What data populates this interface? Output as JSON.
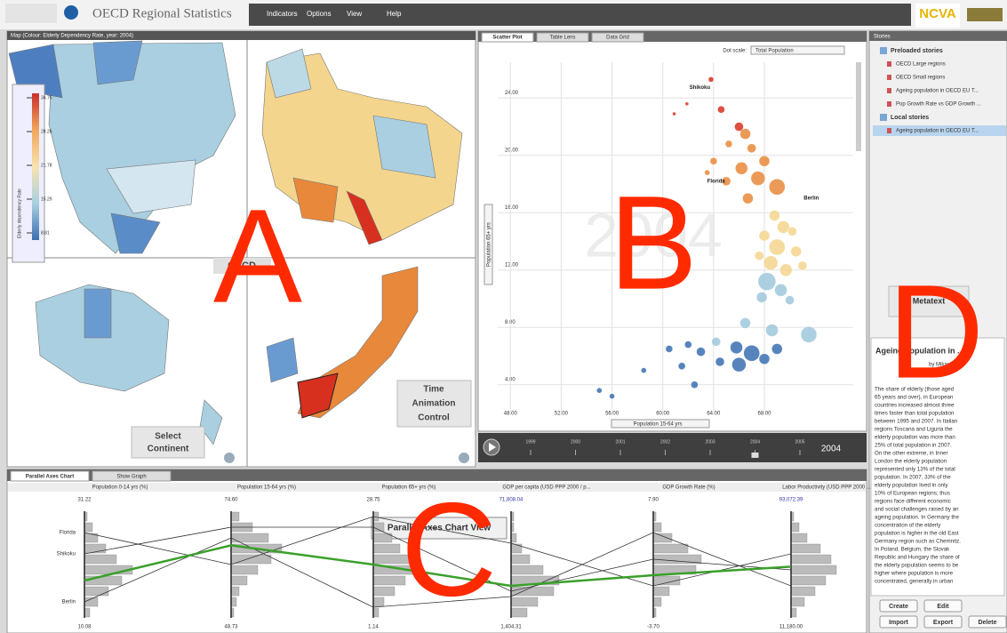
{
  "header": {
    "title": "OECD Regional Statistics",
    "menu": [
      "Indicators",
      "Options",
      "View",
      "Help"
    ],
    "logo": "NCVA"
  },
  "map_panel": {
    "title": "Map (Colour: Elderly Dependency Rate, year: 2004)",
    "overlay": "OECD",
    "letter": "A",
    "callout": [
      "Select",
      "Continent"
    ],
    "legend": {
      "title": "Elderly dependency Rate",
      "ticks": [
        34.75,
        28.26,
        21.78,
        15.29,
        8.81
      ],
      "colors": [
        "#c9302c",
        "#f2a65a",
        "#f7e3b0",
        "#a9cfe0",
        "#3b6fb0"
      ]
    }
  },
  "scatter_panel": {
    "tabs": [
      "Scatter Plot",
      "Table Lens",
      "Data Grid"
    ],
    "dot_scale_label": "Dot scale:",
    "dot_scale": "Total Population",
    "letter": "B",
    "watermark": 2004,
    "chart": {
      "type": "scatter",
      "x_label": "Population 15-64 yrs",
      "y_label": "Population 65+ yrs",
      "xlim": [
        47,
        75
      ],
      "ylim": [
        2,
        26.5
      ],
      "xticks": [
        {
          "value": 48,
          "label": "48.00"
        },
        {
          "value": 52,
          "label": "52.00"
        },
        {
          "value": 56,
          "label": "56.00"
        },
        {
          "value": 60,
          "label": "60.00"
        },
        {
          "value": 64,
          "label": "64.00"
        },
        {
          "value": 68,
          "label": "68.00"
        }
      ],
      "yticks": [
        {
          "value": 4,
          "label": "4.00"
        },
        {
          "value": 8,
          "label": "8.00"
        },
        {
          "value": 12,
          "label": "12.00"
        },
        {
          "value": 16,
          "label": "16.00"
        },
        {
          "value": 20,
          "label": "20.00"
        },
        {
          "value": 24,
          "label": "24.00"
        }
      ],
      "grid": true,
      "colormap": [
        "#3a6fb0",
        "#9ec8dc",
        "#f4d58d",
        "#e8883a",
        "#d7301f"
      ],
      "x": [
        63.8,
        64.6,
        66.0,
        66.5,
        65.2,
        67.0,
        64.0,
        66.2,
        68.0,
        63.5,
        65.0,
        67.5,
        69.0,
        66.7,
        61.9,
        60.9,
        68.8,
        69.5,
        70.2,
        68.0,
        69.0,
        70.5,
        67.6,
        68.5,
        69.7,
        71.0,
        68.2,
        69.3,
        67.8,
        70.0,
        66.5,
        68.6,
        71.5,
        64.2,
        65.8,
        67.0,
        69.0,
        62.0,
        63.0,
        60.5,
        66.0,
        68.0,
        58.5,
        61.5,
        64.5,
        55.0,
        56.0,
        62.5
      ],
      "y": [
        25.3,
        23.2,
        22.0,
        21.5,
        20.8,
        20.5,
        19.6,
        19.1,
        19.6,
        18.8,
        18.2,
        18.4,
        17.8,
        17.0,
        23.6,
        22.9,
        15.8,
        15.0,
        14.7,
        14.4,
        13.6,
        13.3,
        13.0,
        12.5,
        12.0,
        12.3,
        11.2,
        10.6,
        10.1,
        9.9,
        8.3,
        7.8,
        7.5,
        7.0,
        6.6,
        6.2,
        6.5,
        6.8,
        6.3,
        6.5,
        5.4,
        5.8,
        5.0,
        5.3,
        5.6,
        3.6,
        3.2,
        4.0
      ],
      "sizes": [
        3,
        4,
        5,
        6,
        4,
        5,
        4,
        7,
        6,
        3,
        5,
        8,
        9,
        6,
        2,
        2,
        6,
        7,
        5,
        6,
        9,
        6,
        5,
        8,
        7,
        5,
        10,
        7,
        6,
        5,
        6,
        7,
        9,
        5,
        7,
        9,
        6,
        4,
        5,
        4,
        8,
        6,
        3,
        4,
        5,
        3,
        3,
        4
      ],
      "annotations": [
        {
          "text": "Shikoku",
          "x": 62.1,
          "y": 24.75
        },
        {
          "text": "Florida",
          "x": 63.5,
          "y": 18.2
        },
        {
          "text": "Berlin",
          "x": 71.1,
          "y": 17.0
        }
      ]
    }
  },
  "timeline": {
    "callout": [
      "Time",
      "Animation",
      "Control"
    ],
    "ticks": [
      1999,
      2000,
      2001,
      2002,
      2003,
      2004,
      2005
    ],
    "year": 2004
  },
  "parallel_panel": {
    "tabs": [
      "Parallel Axes Chart",
      "Show Graph"
    ],
    "letter": "C",
    "tooltip": "Parallel Axes Chart View",
    "axes": [
      {
        "name": "Population 0-14 yrs (%)",
        "max": {
          "value": 31.22,
          "label": "31.22"
        },
        "min": {
          "value": 10.08,
          "label": "10.08"
        },
        "hist": [
          2,
          5,
          9,
          14,
          18,
          12,
          8,
          5,
          3,
          1
        ]
      },
      {
        "name": "Population 15-64 yrs (%)",
        "max": {
          "value": 74.6,
          "label": "74.60"
        },
        "min": {
          "value": 48.73,
          "label": "48.73"
        },
        "hist": [
          1,
          2,
          3,
          6,
          10,
          15,
          19,
          14,
          8,
          3
        ]
      },
      {
        "name": "Population 65+ yrs (%)",
        "max": {
          "value": 28.75,
          "label": "28.75"
        },
        "min": {
          "value": 1.14,
          "label": "1.14"
        },
        "hist": [
          2,
          4,
          8,
          12,
          16,
          14,
          10,
          7,
          4,
          2
        ]
      },
      {
        "name": "GDP per capita (USD PPP 2000 / p...",
        "max": {
          "value": 71808.04,
          "label": "71,808.04"
        },
        "min": {
          "value": 1404.31,
          "label": "1,404.31"
        },
        "hist": [
          6,
          10,
          16,
          18,
          12,
          7,
          4,
          2,
          1,
          1
        ]
      },
      {
        "name": "GDP Growth Rate (%)",
        "max": {
          "value": 7.9,
          "label": "7.90"
        },
        "min": {
          "value": -3.7,
          "label": "-3.70"
        },
        "hist": [
          1,
          3,
          6,
          10,
          16,
          18,
          13,
          7,
          3,
          1
        ]
      },
      {
        "name": "Labor Productivity (USD PPP 2000 ...",
        "max": {
          "value": 93072.39,
          "label": "93,072.39"
        },
        "min": {
          "value": 11180,
          "label": "11,180.00"
        },
        "hist": [
          2,
          5,
          9,
          13,
          17,
          15,
          11,
          6,
          3,
          1
        ]
      }
    ],
    "lines": [
      {
        "name": "Florida",
        "color": "#333333",
        "values": [
          27.0,
          61.67,
          27.37,
          50687,
          -0.22,
          60315
        ]
      },
      {
        "name": "Shikoku",
        "color": "#333333",
        "values": [
          22.76,
          70.72,
          24.61,
          19005,
          2.68,
          48032
        ]
      },
      {
        "name": "Berlin",
        "color": "#333333",
        "values": [
          13.25,
          68.13,
          3.9,
          15485,
          5.58,
          35748
        ]
      }
    ],
    "mean_line": {
      "color": "#3aa02a",
      "values": [
        17.48,
        66.32,
        14.95,
        22525,
        0.94,
        50488
      ]
    }
  },
  "stories_panel": {
    "title": "Stories",
    "groups": [
      {
        "name": "Preloaded stories",
        "items": [
          "OECD Large regions",
          "OECD Small regions",
          "Ageing population in OECD EU T...",
          "Pop Growth Rate vs GDP Growth ..."
        ]
      },
      {
        "name": "Local stories",
        "items": [
          "Ageing population in OECD EU T..."
        ]
      }
    ],
    "metatext": "Metatext",
    "letter": "D",
    "story_title": "Ageing population in ...",
    "byline": "by Mikael",
    "body": [
      "The share of elderly (those aged",
      "65 years and over), in European",
      "countries increased almost three",
      "times faster than total population",
      "between 1995 and 2007. In Italian",
      "regions Toscana and Liguria the",
      "elderly population was more than",
      "25% of total population in 2007.",
      "On the other extreme, in Inner",
      "London the elderly population",
      "represented only 13% of the total",
      "population. In 2007, 33% of the",
      "elderly population lived in only",
      "10% of European regions; thus",
      "regions face different economic",
      "and social challenges raised by an",
      "ageing population. In Germany the",
      "concentration of the elderly",
      "population is higher in the old East",
      "Germany region such as Chemnitz.",
      "In Poland, Belgium, the Slovak",
      "Republic and Hungary the share of",
      "the elderly population seems to be",
      "higher where population is more",
      "concentrated, generally in urban"
    ],
    "buttons": [
      "Create",
      "Edit",
      "Import",
      "Export",
      "Delete"
    ]
  }
}
